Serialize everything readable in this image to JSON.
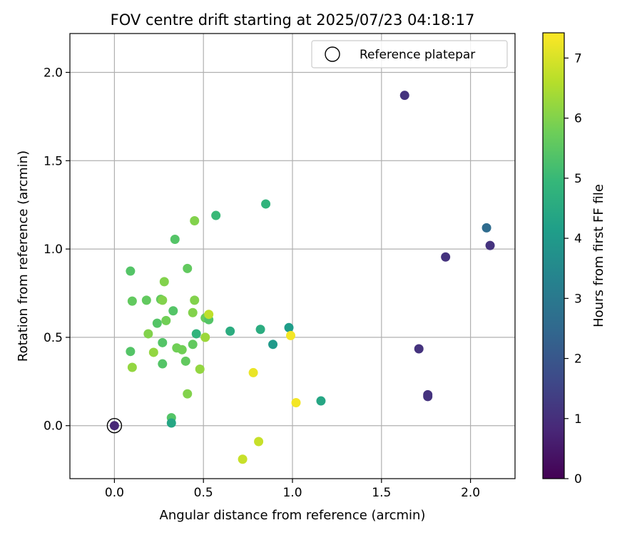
{
  "chart_data": {
    "type": "scatter",
    "title": "FOV centre drift starting at 2025/07/23 04:18:17",
    "xlabel": "Angular distance from reference (arcmin)",
    "ylabel": "Rotation from reference (arcmin)",
    "xlim": [
      -0.25,
      2.25
    ],
    "ylim": [
      -0.3,
      2.22
    ],
    "xticks": [
      0.0,
      0.5,
      1.0,
      1.5,
      2.0
    ],
    "xtick_labels": [
      "0.0",
      "0.5",
      "1.0",
      "1.5",
      "2.0"
    ],
    "yticks": [
      0.0,
      0.5,
      1.0,
      1.5,
      2.0
    ],
    "ytick_labels": [
      "0.0",
      "0.5",
      "1.0",
      "1.5",
      "2.0"
    ],
    "grid": true,
    "legend": {
      "placement": "top-right",
      "entries": [
        "Reference platepar"
      ]
    },
    "colorbar": {
      "label": "Hours from first FF file",
      "range": [
        0,
        7.42
      ],
      "ticks": [
        0,
        1,
        2,
        3,
        4,
        5,
        6,
        7
      ],
      "tick_labels": [
        "0",
        "1",
        "2",
        "3",
        "4",
        "5",
        "6",
        "7"
      ],
      "colormap": "viridis"
    },
    "reference_point": {
      "x": 0.0,
      "y": 0.0
    },
    "points": [
      {
        "x": 0.0,
        "y": 0.0,
        "c": 0.8
      },
      {
        "x": 1.63,
        "y": 1.87,
        "c": 1.1
      },
      {
        "x": 2.09,
        "y": 1.12,
        "c": 2.6
      },
      {
        "x": 2.11,
        "y": 1.02,
        "c": 1.1
      },
      {
        "x": 1.86,
        "y": 0.955,
        "c": 1.1
      },
      {
        "x": 1.71,
        "y": 0.435,
        "c": 1.1
      },
      {
        "x": 1.76,
        "y": 0.175,
        "c": 1.1
      },
      {
        "x": 1.76,
        "y": 0.165,
        "c": 1.1
      },
      {
        "x": 0.85,
        "y": 1.255,
        "c": 4.8
      },
      {
        "x": 0.57,
        "y": 1.19,
        "c": 5.0
      },
      {
        "x": 0.45,
        "y": 1.16,
        "c": 6.0
      },
      {
        "x": 0.34,
        "y": 1.055,
        "c": 5.4
      },
      {
        "x": 0.09,
        "y": 0.875,
        "c": 5.4
      },
      {
        "x": 0.41,
        "y": 0.89,
        "c": 5.6
      },
      {
        "x": 0.28,
        "y": 0.815,
        "c": 6.0
      },
      {
        "x": 0.1,
        "y": 0.705,
        "c": 5.6
      },
      {
        "x": 0.18,
        "y": 0.71,
        "c": 5.6
      },
      {
        "x": 0.26,
        "y": 0.715,
        "c": 5.6
      },
      {
        "x": 0.27,
        "y": 0.71,
        "c": 6.0
      },
      {
        "x": 0.45,
        "y": 0.71,
        "c": 6.0
      },
      {
        "x": 0.33,
        "y": 0.65,
        "c": 5.4
      },
      {
        "x": 0.44,
        "y": 0.64,
        "c": 6.0
      },
      {
        "x": 0.29,
        "y": 0.595,
        "c": 5.8
      },
      {
        "x": 0.51,
        "y": 0.61,
        "c": 5.7
      },
      {
        "x": 0.53,
        "y": 0.6,
        "c": 5.4
      },
      {
        "x": 0.53,
        "y": 0.63,
        "c": 6.7
      },
      {
        "x": 0.24,
        "y": 0.58,
        "c": 5.4
      },
      {
        "x": 0.65,
        "y": 0.535,
        "c": 4.6
      },
      {
        "x": 0.82,
        "y": 0.545,
        "c": 4.6
      },
      {
        "x": 0.98,
        "y": 0.555,
        "c": 4.1
      },
      {
        "x": 0.99,
        "y": 0.51,
        "c": 7.3
      },
      {
        "x": 0.19,
        "y": 0.52,
        "c": 6.0
      },
      {
        "x": 0.46,
        "y": 0.52,
        "c": 4.8
      },
      {
        "x": 0.51,
        "y": 0.5,
        "c": 6.3
      },
      {
        "x": 0.27,
        "y": 0.47,
        "c": 5.4
      },
      {
        "x": 0.89,
        "y": 0.46,
        "c": 4.0
      },
      {
        "x": 0.44,
        "y": 0.46,
        "c": 5.6
      },
      {
        "x": 0.35,
        "y": 0.44,
        "c": 5.8
      },
      {
        "x": 0.38,
        "y": 0.43,
        "c": 5.8
      },
      {
        "x": 0.09,
        "y": 0.42,
        "c": 5.4
      },
      {
        "x": 0.22,
        "y": 0.415,
        "c": 6.2
      },
      {
        "x": 0.4,
        "y": 0.365,
        "c": 5.6
      },
      {
        "x": 0.27,
        "y": 0.35,
        "c": 5.4
      },
      {
        "x": 0.1,
        "y": 0.33,
        "c": 6.2
      },
      {
        "x": 0.48,
        "y": 0.32,
        "c": 6.2
      },
      {
        "x": 0.78,
        "y": 0.3,
        "c": 7.2
      },
      {
        "x": 0.41,
        "y": 0.18,
        "c": 6.0
      },
      {
        "x": 1.16,
        "y": 0.14,
        "c": 4.4
      },
      {
        "x": 1.02,
        "y": 0.13,
        "c": 7.3
      },
      {
        "x": 0.32,
        "y": 0.045,
        "c": 5.4
      },
      {
        "x": 0.32,
        "y": 0.015,
        "c": 4.4
      },
      {
        "x": 0.81,
        "y": -0.09,
        "c": 6.8
      },
      {
        "x": 0.72,
        "y": -0.19,
        "c": 6.8
      }
    ]
  }
}
